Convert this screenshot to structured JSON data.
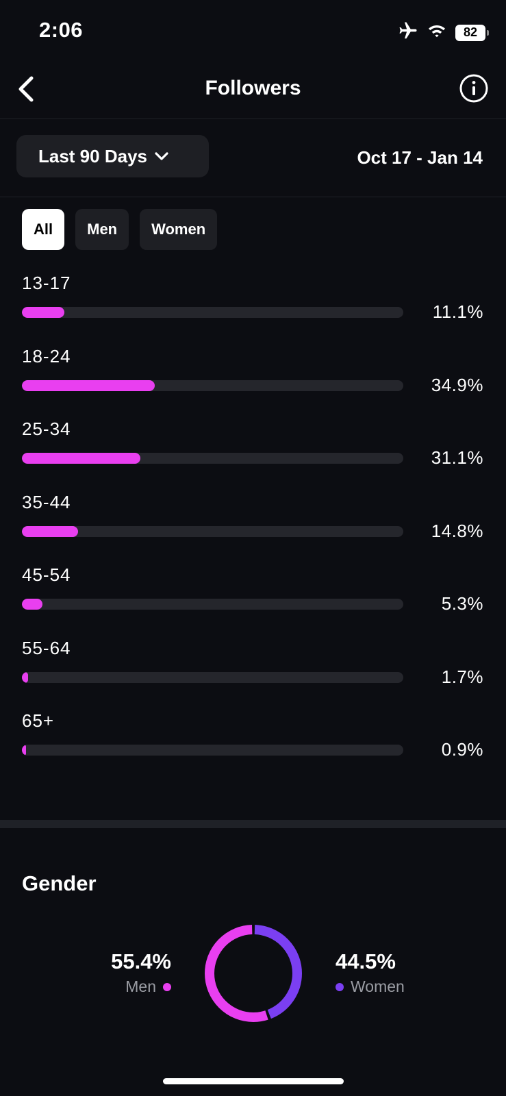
{
  "status_bar": {
    "time": "2:06",
    "battery": "82"
  },
  "header": {
    "title": "Followers"
  },
  "range": {
    "selected": "Last 90 Days",
    "dates": "Oct 17 - Jan 14"
  },
  "filters": [
    "All",
    "Men",
    "Women"
  ],
  "active_filter": "All",
  "age_groups": [
    {
      "label": "13-17",
      "value": "11.1%",
      "percent": 11.1
    },
    {
      "label": "18-24",
      "value": "34.9%",
      "percent": 34.9
    },
    {
      "label": "25-34",
      "value": "31.1%",
      "percent": 31.1
    },
    {
      "label": "35-44",
      "value": "14.8%",
      "percent": 14.8
    },
    {
      "label": "45-54",
      "value": "5.3%",
      "percent": 5.3
    },
    {
      "label": "55-64",
      "value": "1.7%",
      "percent": 1.7
    },
    {
      "label": "65+",
      "value": "0.9%",
      "percent": 0.9
    }
  ],
  "gender": {
    "title": "Gender",
    "men": {
      "label": "Men",
      "value": "55.4%",
      "percent": 55.4,
      "color": "#e93ff0"
    },
    "women": {
      "label": "Women",
      "value": "44.5%",
      "percent": 44.5,
      "color": "#7b3ff2"
    }
  },
  "colors": {
    "accent": "#e93ff0",
    "track": "#25262c",
    "background": "#0c0d12"
  }
}
